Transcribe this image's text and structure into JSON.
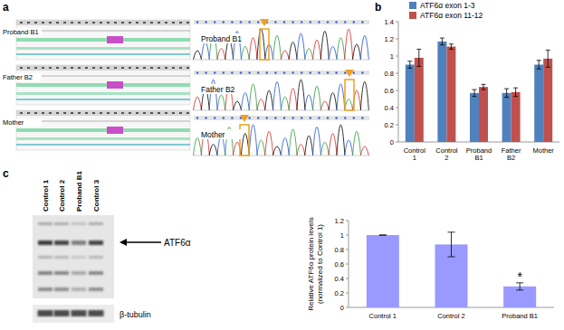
{
  "panels": {
    "labels": [
      "a",
      "b",
      "c"
    ],
    "a": {
      "alignment_labels": [
        "Proband B1",
        "Father B2",
        "Mother"
      ],
      "trace_labels": [
        "Proband B1",
        "Father B2",
        "Mother"
      ]
    },
    "c": {
      "lanes": [
        "Control 1",
        "Control 2",
        "Proband B1",
        "Control 3"
      ],
      "band_label": "ATF6α",
      "loading_label": "β-tubulin"
    }
  },
  "chart_data": [
    {
      "type": "bar",
      "categories": [
        "Control 1",
        "Control 2",
        "Proband B1",
        "Father B2",
        "Mother"
      ],
      "series": [
        {
          "name": "ATF6α exon 1-3",
          "color": "#4f81bd",
          "values": [
            0.9,
            1.17,
            0.57,
            0.57,
            0.9
          ],
          "errors": [
            0.04,
            0.04,
            0.04,
            0.05,
            0.05
          ]
        },
        {
          "name": "ATF6α exon 11-12",
          "color": "#c0504d",
          "values": [
            0.98,
            1.11,
            0.64,
            0.58,
            0.97
          ],
          "errors": [
            0.1,
            0.03,
            0.03,
            0.05,
            0.1
          ]
        }
      ],
      "ylim": [
        0,
        1.4
      ],
      "yticks": [
        0,
        0.2,
        0.4,
        0.6,
        0.8,
        1,
        1.2,
        1.4
      ],
      "legend": "top"
    },
    {
      "type": "bar",
      "y_label": [
        "Relative ATF6α protein levels",
        "(normalized to Control 1)"
      ],
      "categories": [
        "Control 1",
        "Control 2",
        "Proband B1"
      ],
      "values": [
        1,
        0.87,
        0.29
      ],
      "errors": [
        0,
        0.17,
        0.05
      ],
      "color": "#9999ff",
      "ylim": [
        0,
        1.2
      ],
      "yticks": [
        0,
        0.2,
        0.4,
        0.6,
        0.8,
        1,
        1.2
      ],
      "annotations": [
        {
          "text": "*",
          "category": "Proband B1"
        }
      ]
    }
  ]
}
